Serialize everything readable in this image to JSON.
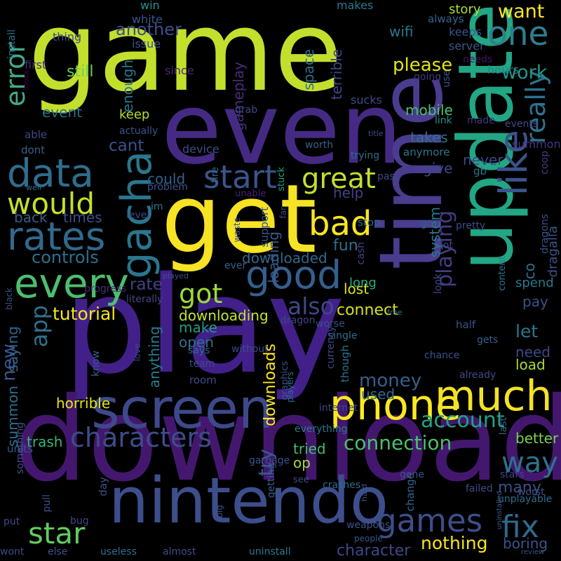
{
  "words": [
    {
      "text": "game",
      "color": "#c3df2d"
    },
    {
      "text": "play",
      "color": "#42208a"
    },
    {
      "text": "download",
      "color": "#44176f"
    },
    {
      "text": "even",
      "color": "#452a84"
    },
    {
      "text": "update",
      "color": "#22a684"
    },
    {
      "text": "get",
      "color": "#f5e324"
    },
    {
      "text": "time",
      "color": "#4a3c8e"
    },
    {
      "text": "nintendo",
      "color": "#3d4e8c"
    },
    {
      "text": "screen",
      "color": "#3e498b"
    },
    {
      "text": "phone",
      "color": "#fae91f"
    },
    {
      "text": "much",
      "color": "#f3e224"
    },
    {
      "text": "one",
      "color": "#2d7f8e"
    },
    {
      "text": "gacha",
      "color": "#2a768e"
    },
    {
      "text": "like",
      "color": "#3a548c"
    },
    {
      "text": "really",
      "color": "#2c728e"
    },
    {
      "text": "rates",
      "color": "#31698d"
    },
    {
      "text": "data",
      "color": "#2f6d8e"
    },
    {
      "text": "every",
      "color": "#4bbf6f"
    },
    {
      "text": "good",
      "color": "#355f8d"
    },
    {
      "text": "would",
      "color": "#c7df29"
    },
    {
      "text": "bad",
      "color": "#fae51f"
    },
    {
      "text": "characters",
      "color": "#3d4c8a"
    },
    {
      "text": "games",
      "color": "#3d4e8a"
    },
    {
      "text": "star",
      "color": "#63cb5f"
    },
    {
      "text": "fix",
      "color": "#31698e"
    },
    {
      "text": "way",
      "color": "#2d728e"
    },
    {
      "text": "error",
      "color": "#44a88a"
    },
    {
      "text": "app",
      "color": "#2e728e"
    },
    {
      "text": "new",
      "color": "#3a548c"
    },
    {
      "text": "start",
      "color": "#3b548b"
    },
    {
      "text": "great",
      "color": "#c5df27"
    },
    {
      "text": "got",
      "color": "#9dd93b"
    },
    {
      "text": "playing",
      "color": "#433c84"
    },
    {
      "text": "also",
      "color": "#3e4989"
    },
    {
      "text": "money",
      "color": "#355f8d"
    },
    {
      "text": "account",
      "color": "#20a386"
    },
    {
      "text": "connection",
      "color": "#4ac16d"
    },
    {
      "text": "nothing",
      "color": "#f5e61e"
    },
    {
      "text": "want",
      "color": "#fde725"
    },
    {
      "text": "another",
      "color": "#3d4d8a"
    },
    {
      "text": "work",
      "color": "#1f978b"
    },
    {
      "text": "please",
      "color": "#e2e418"
    },
    {
      "text": "tutorial",
      "color": "#f4e61e"
    },
    {
      "text": "controls",
      "color": "#2e6f8e"
    },
    {
      "text": "downloading",
      "color": "#c4e22c"
    },
    {
      "text": "let",
      "color": "#2a778e"
    },
    {
      "text": "fun",
      "color": "#2d718e"
    },
    {
      "text": "rate",
      "color": "#424186"
    },
    {
      "text": "cant",
      "color": "#3b528b"
    },
    {
      "text": "could",
      "color": "#355f8d"
    },
    {
      "text": "downloaded",
      "color": "#31678e"
    },
    {
      "text": "lost",
      "color": "#e1e11c"
    },
    {
      "text": "boring",
      "color": "#3b528b"
    },
    {
      "text": "character",
      "color": "#3f478a"
    },
    {
      "text": "many",
      "color": "#3d4e8a"
    },
    {
      "text": "better",
      "color": "#7ad151"
    },
    {
      "text": "load",
      "color": "#aadc32"
    },
    {
      "text": "used",
      "color": "#2f6b8e"
    },
    {
      "text": "open",
      "color": "#2d728e"
    },
    {
      "text": "make",
      "color": "#1f9e89"
    },
    {
      "text": "still",
      "color": "#6ece58"
    },
    {
      "text": "mobile",
      "color": "#4cc26c"
    },
    {
      "text": "takes",
      "color": "#2c738e"
    },
    {
      "text": "keep",
      "color": "#b5de2b"
    },
    {
      "text": "give",
      "color": "#3e4989"
    },
    {
      "text": "help",
      "color": "#424086"
    },
    {
      "text": "tried",
      "color": "#40bd72"
    },
    {
      "text": "horrible",
      "color": "#e5e419"
    },
    {
      "text": "trash",
      "color": "#35b779"
    },
    {
      "text": "downloads",
      "color": "#fde725"
    },
    {
      "text": "op",
      "color": "#a5db36"
    },
    {
      "text": "try",
      "color": "#365c8d"
    },
    {
      "text": "anything",
      "color": "#287d8e"
    },
    {
      "text": "never",
      "color": "#3f4788"
    },
    {
      "text": "need",
      "color": "#3f4889"
    },
    {
      "text": "system",
      "color": "#2a788e"
    },
    {
      "text": "loading",
      "color": "#38598c"
    },
    {
      "text": "space",
      "color": "#2e6e8e"
    },
    {
      "text": "wifi",
      "color": "#2a768e"
    },
    {
      "text": "event",
      "color": "#2c718e"
    },
    {
      "text": "enough",
      "color": "#2b758e"
    },
    {
      "text": "gameplay",
      "color": "#472e7c"
    },
    {
      "text": "story",
      "color": "#addc30"
    },
    {
      "text": "terrible",
      "color": "#404588"
    },
    {
      "text": "times",
      "color": "#3c4f8a"
    },
    {
      "text": "back",
      "color": "#365c8d"
    },
    {
      "text": "saying",
      "color": "#32658e"
    },
    {
      "text": "summon",
      "color": "#2e6e8e"
    },
    {
      "text": "long",
      "color": "#26ad81"
    },
    {
      "text": "connect",
      "color": "#d8e219"
    },
    {
      "text": "co",
      "color": "#2e6f8e"
    },
    {
      "text": "pay",
      "color": "#3b528b"
    },
    {
      "text": "spend",
      "color": "#2a788e"
    },
    {
      "text": "dragalia",
      "color": "#3a548c"
    },
    {
      "text": "dragons",
      "color": "#3b528b"
    },
    {
      "text": "sucks",
      "color": "#3f4889"
    },
    {
      "text": "makes",
      "color": "#2a788e"
    },
    {
      "text": "always",
      "color": "#32658e"
    },
    {
      "text": "keeps",
      "color": "#3b528b"
    },
    {
      "text": "server",
      "color": "#38598c"
    },
    {
      "text": "hours",
      "color": "#25858e"
    },
    {
      "text": "needs",
      "color": "#481467"
    },
    {
      "text": "win",
      "color": "#20938c"
    },
    {
      "text": "white",
      "color": "#3a548c"
    },
    {
      "text": "thing",
      "color": "#3f4788"
    },
    {
      "text": "install",
      "color": "#2c718e"
    },
    {
      "text": "issue",
      "color": "#3b528b"
    },
    {
      "text": "first",
      "color": "#472d7b"
    },
    {
      "text": "looks",
      "color": "#440154"
    },
    {
      "text": "since",
      "color": "#482878"
    },
    {
      "text": "going",
      "color": "#453781"
    },
    {
      "text": "use",
      "color": "#3b528b"
    },
    {
      "text": "made",
      "color": "#453882"
    },
    {
      "text": "events",
      "color": "#3e4a89"
    },
    {
      "text": "link",
      "color": "#21918c"
    },
    {
      "text": "title",
      "color": "#3f4889"
    },
    {
      "text": "coop",
      "color": "#433d84"
    },
    {
      "text": "summoning",
      "color": "#46327e"
    },
    {
      "text": "gb",
      "color": "#2c738e"
    },
    {
      "text": "grab",
      "color": "#3e4989"
    },
    {
      "text": "actually",
      "color": "#3a538b"
    },
    {
      "text": "able",
      "color": "#3e4a89"
    },
    {
      "text": "dont",
      "color": "#34608d"
    },
    {
      "text": "worth",
      "color": "#34618d"
    },
    {
      "text": "trying",
      "color": "#2f6c8e"
    },
    {
      "text": "anymore",
      "color": "#2a768e"
    },
    {
      "text": "past",
      "color": "#3e4a89"
    },
    {
      "text": "stuck",
      "color": "#20a486"
    },
    {
      "text": "device",
      "color": "#3d4d8a"
    },
    {
      "text": "fire",
      "color": "#2f6b8e"
    },
    {
      "text": "well",
      "color": "#2f6c8e"
    },
    {
      "text": "problem",
      "color": "#3a548c"
    },
    {
      "text": "unable",
      "color": "#482173"
    },
    {
      "text": "pretty",
      "color": "#3e4a89"
    },
    {
      "text": "im",
      "color": "#2a788e"
    },
    {
      "text": "level",
      "color": "#404588"
    },
    {
      "text": "far",
      "color": "#3e4c8a"
    },
    {
      "text": "support",
      "color": "#3b528b"
    },
    {
      "text": "waste",
      "color": "#3d4e8a"
    },
    {
      "text": "ever",
      "color": "#34608d"
    },
    {
      "text": "stop",
      "color": "#31678e"
    },
    {
      "text": "go",
      "color": "#34618d"
    },
    {
      "text": "lot",
      "color": "#3f4889"
    },
    {
      "text": "content",
      "color": "#2a788e"
    },
    {
      "text": "played",
      "color": "#3b528b"
    },
    {
      "text": "black",
      "color": "#3b528b"
    },
    {
      "text": "progress",
      "color": "#482878"
    },
    {
      "text": "literally",
      "color": "#3f4788"
    },
    {
      "text": "cash",
      "color": "#3e4a89"
    },
    {
      "text": "look",
      "color": "#3d4e8a"
    },
    {
      "text": "free",
      "color": "#2f6c8e"
    },
    {
      "text": "dragon",
      "color": "#404588"
    },
    {
      "text": "worse",
      "color": "#3b528b"
    },
    {
      "text": "single",
      "color": "#2f6c8e"
    },
    {
      "text": "half",
      "color": "#3a548c"
    },
    {
      "text": "gets",
      "color": "#34618d"
    },
    {
      "text": "chance",
      "color": "#3a548c"
    },
    {
      "text": "says",
      "color": "#2f6c8e"
    },
    {
      "text": "without",
      "color": "#3e4a89"
    },
    {
      "text": "team",
      "color": "#3e4a89"
    },
    {
      "text": "love",
      "color": "#404588"
    },
    {
      "text": "know",
      "color": "#34618d"
    },
    {
      "text": "graphics",
      "color": "#3b528b"
    },
    {
      "text": "players",
      "color": "#2c718e"
    },
    {
      "text": "currency",
      "color": "#3e4a89"
    },
    {
      "text": "internet",
      "color": "#404588"
    },
    {
      "text": "though",
      "color": "#2c718e"
    },
    {
      "text": "room",
      "color": "#3e4a89"
    },
    {
      "text": "already",
      "color": "#3e4a89"
    },
    {
      "text": "last",
      "color": "#34618d"
    },
    {
      "text": "everything",
      "color": "#2a788e"
    },
    {
      "text": "something",
      "color": "#3b528b"
    },
    {
      "text": "units",
      "color": "#3a548c"
    },
    {
      "text": "garbage",
      "color": "#3b528b"
    },
    {
      "text": "getting",
      "color": "#34618d"
    },
    {
      "text": "see",
      "color": "#3e4a89"
    },
    {
      "text": "hard",
      "color": "#3b528b"
    },
    {
      "text": "gone",
      "color": "#3a548c"
    },
    {
      "text": "change",
      "color": "#34618d"
    },
    {
      "text": "stars",
      "color": "#404588"
    },
    {
      "text": "unplayable",
      "color": "#2f6c8e"
    },
    {
      "text": "failed",
      "color": "#3e4a89"
    },
    {
      "text": "worst",
      "color": "#3b528b"
    },
    {
      "text": "day",
      "color": "#3a548c"
    },
    {
      "text": "big",
      "color": "#3b528b"
    },
    {
      "text": "pull",
      "color": "#3d4e8a"
    },
    {
      "text": "crashes",
      "color": "#2f6c8e"
    },
    {
      "text": "uninstalled",
      "color": "#34618d"
    },
    {
      "text": "put",
      "color": "#3e4a89"
    },
    {
      "text": "bug",
      "color": "#404588"
    },
    {
      "text": "weapons",
      "color": "#3b528b"
    },
    {
      "text": "people",
      "color": "#3a548c"
    },
    {
      "text": "wont",
      "color": "#3e4a89"
    },
    {
      "text": "else",
      "color": "#3b528b"
    },
    {
      "text": "useless",
      "color": "#2c718e"
    },
    {
      "text": "almost",
      "color": "#3e4a89"
    },
    {
      "text": "uninstall",
      "color": "#2a788e"
    },
    {
      "text": "review",
      "color": "#3b528b"
    },
    {
      "text": "create",
      "color": "#34618d"
    },
    {
      "text": "find",
      "color": "#3e4a89"
    }
  ]
}
